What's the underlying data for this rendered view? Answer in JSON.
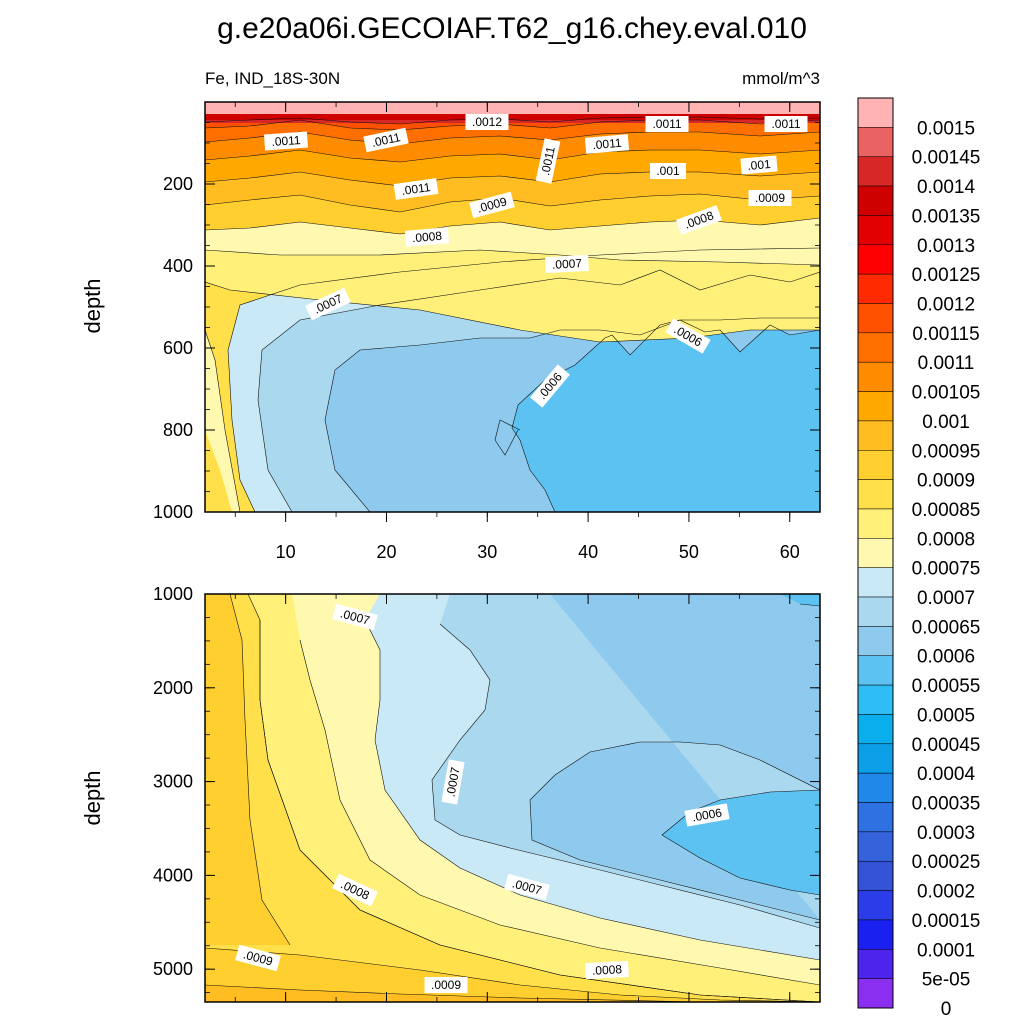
{
  "title": "g.e20a06i.GECOIAF.T62_g16.chey.eval.010",
  "subtitle_left": "Fe, IND_18S-30N",
  "subtitle_right": "mmol/m^3",
  "chart_data": [
    {
      "type": "contour",
      "panel": "upper",
      "ylabel": "depth",
      "xlim": [
        2,
        63
      ],
      "ylim": [
        1000,
        0
      ],
      "x_ticks": [
        "10",
        "20",
        "30",
        "40",
        "50",
        "60"
      ],
      "y_ticks": [
        "200",
        "400",
        "600",
        "800",
        "1000"
      ],
      "contour_labels": [
        ".0011",
        ".0011",
        ".0012",
        ".0011",
        ".0011",
        ".0011",
        ".0011",
        ".001",
        ".001",
        ".0011",
        ".0009",
        ".0009",
        ".0008",
        ".0008",
        ".0007",
        ".0007",
        ".0006",
        ".0006"
      ]
    },
    {
      "type": "contour",
      "panel": "lower",
      "ylabel": "depth",
      "xlim": [
        2,
        63
      ],
      "ylim": [
        5350,
        1000
      ],
      "y_ticks": [
        "1000",
        "2000",
        "3000",
        "4000",
        "5000"
      ],
      "contour_labels": [
        ".0007",
        ".0007",
        ".0006",
        ".0008",
        ".0007",
        ".0009",
        ".0009",
        ".0008"
      ]
    }
  ],
  "colorbar": {
    "labels": [
      "0.0015",
      "0.00145",
      "0.0014",
      "0.00135",
      "0.0013",
      "0.00125",
      "0.0012",
      "0.00115",
      "0.0011",
      "0.00105",
      "0.001",
      "0.00095",
      "0.0009",
      "0.00085",
      "0.0008",
      "0.00075",
      "0.0007",
      "0.00065",
      "0.0006",
      "0.00055",
      "0.0005",
      "0.00045",
      "0.0004",
      "0.00035",
      "0.0003",
      "0.00025",
      "0.0002",
      "0.00015",
      "0.0001",
      "5e-05",
      "0"
    ],
    "colors": [
      "#ffb3b3",
      "#eb6262",
      "#d72727",
      "#cf0000",
      "#e30000",
      "#ff0000",
      "#ff2a00",
      "#ff5000",
      "#ff6f00",
      "#ff8c00",
      "#ffa800",
      "#ffbd22",
      "#ffce2f",
      "#ffe04a",
      "#fff07a",
      "#fff9b0",
      "#c8e9f5",
      "#aad8ef",
      "#8ec9ee",
      "#5cc2f2",
      "#2ebef5",
      "#0baeec",
      "#0d9ee8",
      "#2088e8",
      "#2d71e3",
      "#3563dc",
      "#3553d7",
      "#2a3de8",
      "#1a20f0",
      "#4d24ec",
      "#8a2ff0"
    ]
  }
}
